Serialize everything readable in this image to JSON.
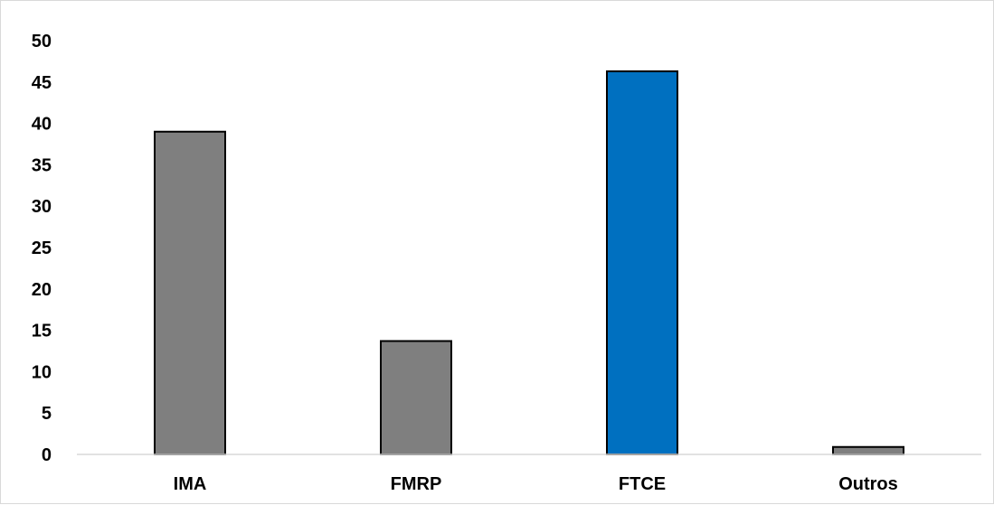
{
  "chart_data": {
    "type": "bar",
    "title": "",
    "xlabel": "",
    "ylabel": "",
    "categories": [
      "IMA",
      "FMRP",
      "FTCE",
      "Outros"
    ],
    "values": [
      39,
      13.7,
      46.3,
      0.9
    ],
    "ylim": [
      0,
      50
    ],
    "yticks": [
      0,
      5,
      10,
      15,
      20,
      25,
      30,
      35,
      40,
      45,
      50
    ],
    "grid": false,
    "legend": "none",
    "colors": {
      "default_bar": "#7f7f7f",
      "highlight_bar": "#0070c0",
      "bar_edge": "#000000",
      "axis": "#d9d9d9"
    },
    "highlight_index": 2
  }
}
